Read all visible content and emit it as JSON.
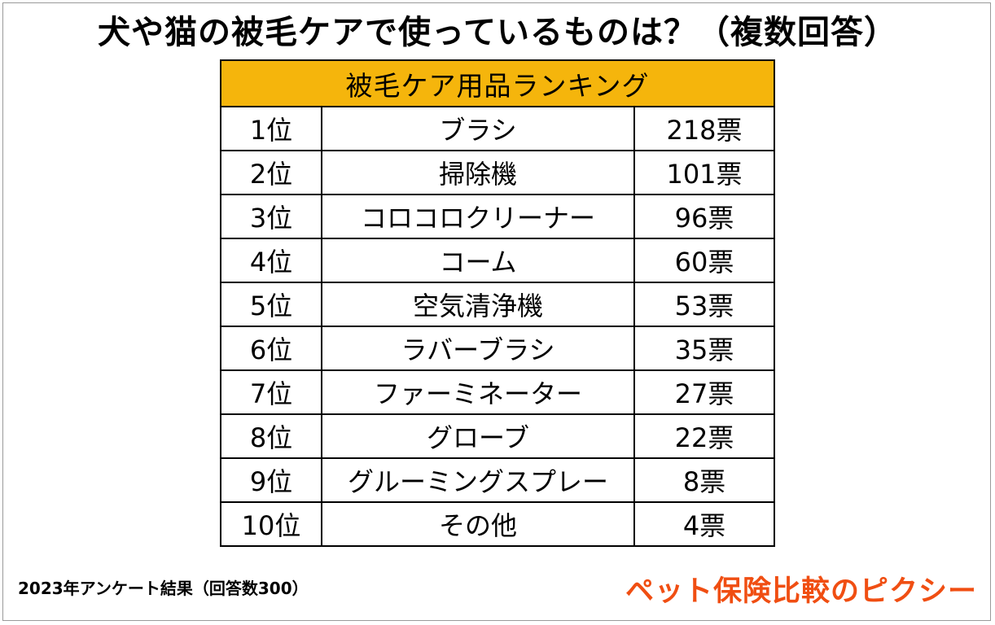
{
  "title": "犬や猫の被毛ケアで使っているものは？（複数回答）",
  "table": {
    "header": "被毛ケア用品ランキング",
    "rows": [
      {
        "rank": "1位",
        "item": "ブラシ",
        "votes": "218票"
      },
      {
        "rank": "2位",
        "item": "掃除機",
        "votes": "101票"
      },
      {
        "rank": "3位",
        "item": "コロコロクリーナー",
        "votes": "96票"
      },
      {
        "rank": "4位",
        "item": "コーム",
        "votes": "60票"
      },
      {
        "rank": "5位",
        "item": "空気清浄機",
        "votes": "53票"
      },
      {
        "rank": "6位",
        "item": "ラバーブラシ",
        "votes": "35票"
      },
      {
        "rank": "7位",
        "item": "ファーミネーター",
        "votes": "27票"
      },
      {
        "rank": "8位",
        "item": "グローブ",
        "votes": "22票"
      },
      {
        "rank": "9位",
        "item": "グルーミングスプレー",
        "votes": "8票"
      },
      {
        "rank": "10位",
        "item": "その他",
        "votes": "4票"
      }
    ]
  },
  "footnote": "2023年アンケート結果（回答数300）",
  "brand": "ペット保険比較のピクシー",
  "colors": {
    "header_bg": "#f5b50c",
    "brand": "#f04e12"
  }
}
